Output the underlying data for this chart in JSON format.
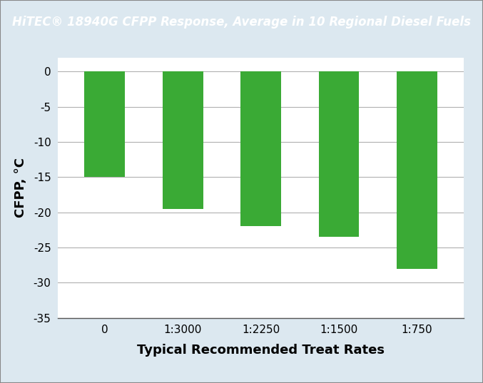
{
  "title": "HiTEC® 18940G CFPP Response, Average in 10 Regional Diesel Fuels",
  "xlabel": "Typical Recommended Treat Rates",
  "ylabel": "CFPP, °C",
  "categories": [
    "0",
    "1:3000",
    "1:2250",
    "1:1500",
    "1:750"
  ],
  "values": [
    -15.0,
    -19.5,
    -22.0,
    -23.5,
    -28.0
  ],
  "bar_color": "#3aaa35",
  "title_bg_color": "#1872b8",
  "title_text_color": "#ffffff",
  "outer_bg_color": "#dce8f0",
  "plot_bg_color": "#ffffff",
  "ylim": [
    -35,
    2
  ],
  "yticks": [
    0,
    -5,
    -10,
    -15,
    -20,
    -25,
    -30,
    -35
  ],
  "grid_color": "#b0b0b0",
  "bar_width": 0.52,
  "title_fontsize": 12.0,
  "axis_label_fontsize": 13,
  "tick_fontsize": 11
}
